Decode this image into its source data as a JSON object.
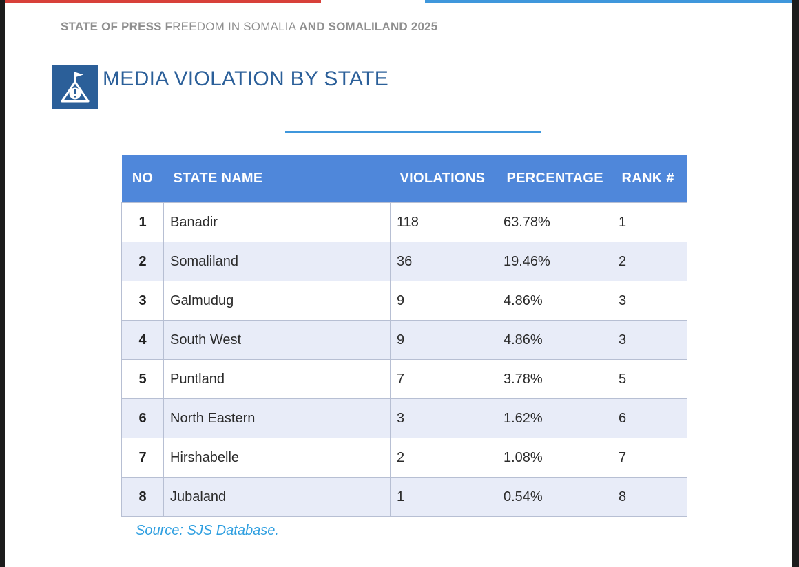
{
  "colors": {
    "accent_red": "#d8403a",
    "accent_blue": "#3f97dc",
    "title_blue": "#2b5f99",
    "table_header": "#4f87da",
    "source_blue": "#2f9fe0"
  },
  "header": {
    "part1": "STATE OF PRESS F",
    "part2": "REEDOM IN SOMALIA ",
    "part3": "AND SOMALILAND 2025"
  },
  "section": {
    "icon": "flag-warning-icon",
    "title": "MEDIA VIOLATION BY STATE"
  },
  "table": {
    "columns": [
      "NO",
      "STATE NAME",
      "VIOLATIONS",
      "PERCENTAGE",
      "RANK #"
    ],
    "rows": [
      [
        "1",
        "Banadir",
        "118",
        "63.78%",
        "1"
      ],
      [
        "2",
        "Somaliland",
        "36",
        "19.46%",
        "2"
      ],
      [
        "3",
        "Galmudug",
        "9",
        "4.86%",
        "3"
      ],
      [
        "4",
        "South West",
        "9",
        "4.86%",
        "3"
      ],
      [
        "5",
        "Puntland",
        "7",
        "3.78%",
        "5"
      ],
      [
        "6",
        "North Eastern",
        "3",
        "1.62%",
        "6"
      ],
      [
        "7",
        "Hirshabelle",
        "2",
        "1.08%",
        "7"
      ],
      [
        "8",
        "Jubaland",
        "1",
        "0.54%",
        "8"
      ]
    ]
  },
  "source": "Source: SJS Database."
}
